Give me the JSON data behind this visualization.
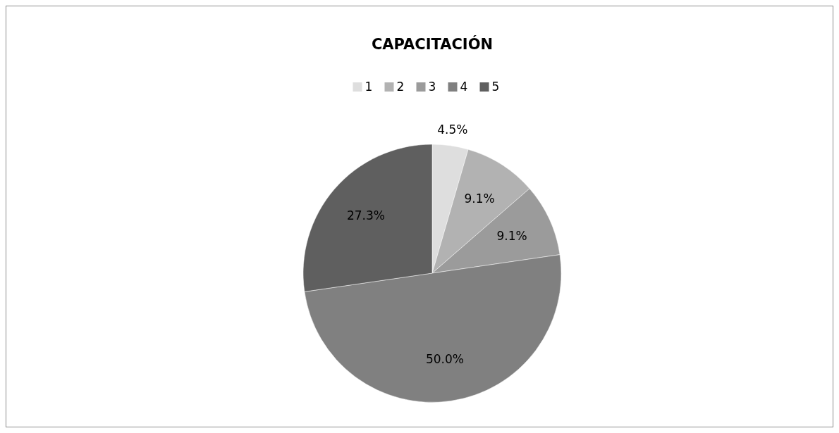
{
  "chart_data": {
    "type": "pie",
    "title": "CAPACITACIÓN",
    "categories": [
      "1",
      "2",
      "3",
      "4",
      "5"
    ],
    "values": [
      4.5,
      9.1,
      9.1,
      50.0,
      27.3
    ],
    "colors": [
      "#dedede",
      "#b2b2b2",
      "#9b9b9b",
      "#808080",
      "#5f5f5f"
    ],
    "value_labels": [
      "4.5%",
      "9.1%",
      "9.1%",
      "50.0%",
      "27.3%"
    ],
    "legend": "top"
  }
}
